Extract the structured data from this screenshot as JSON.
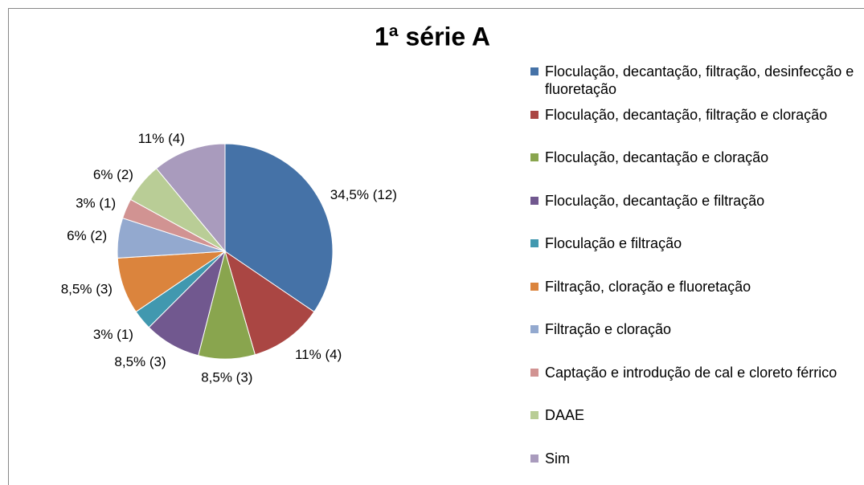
{
  "chart_data": {
    "type": "pie",
    "title": "1ª série A",
    "categories": [
      "Floculação, decantação, filtração, desinfecção e fluoretação",
      "Floculação, decantação, filtração e cloração",
      "Floculação, decantação e cloração",
      "Floculação, decantação e filtração",
      "Floculação e filtração",
      "Filtração, cloração e fluoretação",
      "Filtração e cloração",
      "Captação e introdução de cal e cloreto férrico",
      "DAAE",
      "Sim"
    ],
    "values": [
      34.5,
      11,
      8.5,
      8.5,
      3,
      8.5,
      6,
      3,
      6,
      11
    ],
    "value_labels": [
      "34,5% (12)",
      "11% (4)",
      "8,5% (3)",
      "8,5% (3)",
      "3% (1)",
      "8,5% (3)",
      "6% (2)",
      "3% (1)",
      "6% (2)",
      "11% (4)"
    ],
    "colors": [
      "#4572a7",
      "#aa4643",
      "#89a54e",
      "#71588f",
      "#4198af",
      "#db843d",
      "#93a9cf",
      "#d19392",
      "#b9cd96",
      "#a99bbd"
    ],
    "legend": "right"
  }
}
